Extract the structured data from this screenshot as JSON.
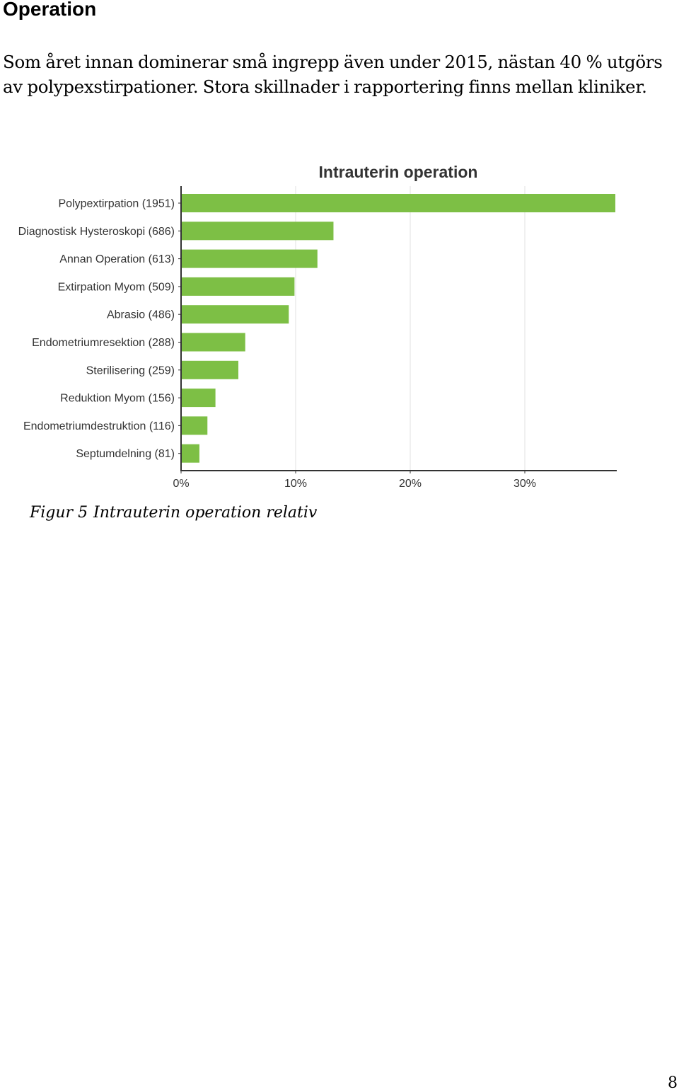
{
  "section": {
    "title": "Operation"
  },
  "body": {
    "paragraph": "Som året innan dominerar små ingrepp även under 2015, nästan 40 % utgörs av polypexstirpationer. Stora skillnader i rapportering finns mellan kliniker."
  },
  "figure": {
    "caption_label": "Figur 5",
    "caption_text": "Intrauterin operation relativ"
  },
  "page": {
    "number": "8"
  },
  "chart_data": {
    "type": "bar",
    "orientation": "horizontal",
    "title": "Intrauterin operation",
    "xlabel": "",
    "ylabel": "",
    "categories": [
      "Polypextirpation (1951)",
      "Diagnostisk Hysteroskopi (686)",
      "Annan Operation (613)",
      "Extirpation Myom (509)",
      "Abrasio (486)",
      "Endometriumresektion (288)",
      "Sterilisering (259)",
      "Reduktion Myom (156)",
      "Endometriumdestruktion (116)",
      "Septumdelning (81)"
    ],
    "values": [
      37.9,
      13.3,
      11.9,
      9.9,
      9.4,
      5.6,
      5.0,
      3.0,
      2.3,
      1.6
    ],
    "xlim": [
      0,
      38
    ],
    "xticks": [
      0,
      10,
      20,
      30
    ],
    "xtick_labels": [
      "0%",
      "10%",
      "20%",
      "30%"
    ],
    "grid": true,
    "bar_color": "#7dbf45"
  }
}
